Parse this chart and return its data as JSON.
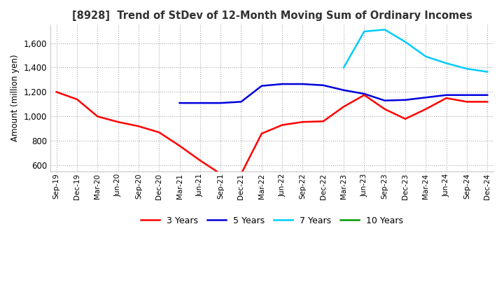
{
  "title": "[8928]  Trend of StDev of 12-Month Moving Sum of Ordinary Incomes",
  "ylabel": "Amount (million yen)",
  "ylim": [
    550,
    1750
  ],
  "yticks": [
    600,
    800,
    1000,
    1200,
    1400,
    1600
  ],
  "legend": [
    "3 Years",
    "5 Years",
    "7 Years",
    "10 Years"
  ],
  "legend_colors": [
    "#ff0000",
    "#0000dd",
    "#00ccff",
    "#009900"
  ],
  "x_labels": [
    "Sep-19",
    "Dec-19",
    "Mar-20",
    "Jun-20",
    "Sep-20",
    "Dec-20",
    "Mar-21",
    "Jun-21",
    "Sep-21",
    "Dec-21",
    "Mar-22",
    "Jun-22",
    "Sep-22",
    "Dec-22",
    "Mar-23",
    "Jun-23",
    "Sep-23",
    "Dec-23",
    "Mar-24",
    "Jun-24",
    "Sep-24",
    "Dec-24"
  ],
  "series_3y": [
    1200,
    1140,
    1000,
    955,
    920,
    870,
    760,
    640,
    530,
    530,
    860,
    930,
    955,
    960,
    1080,
    1175,
    1060,
    980,
    1060,
    1150,
    1120,
    1120
  ],
  "series_5y": [
    null,
    null,
    null,
    null,
    null,
    null,
    1110,
    1110,
    1110,
    1120,
    1250,
    1265,
    1265,
    1255,
    1215,
    1185,
    1130,
    1135,
    1155,
    1175,
    1175,
    1175
  ],
  "series_7y": [
    null,
    null,
    null,
    null,
    null,
    null,
    null,
    null,
    null,
    null,
    null,
    null,
    null,
    null,
    1400,
    1695,
    1710,
    1610,
    1490,
    1435,
    1390,
    1365
  ],
  "series_10y": [
    null,
    null,
    null,
    null,
    null,
    null,
    null,
    null,
    null,
    null,
    null,
    null,
    null,
    null,
    null,
    null,
    null,
    null,
    null,
    null,
    null,
    null
  ],
  "background_color": "#ffffff",
  "grid_color": "#aaaaaa"
}
